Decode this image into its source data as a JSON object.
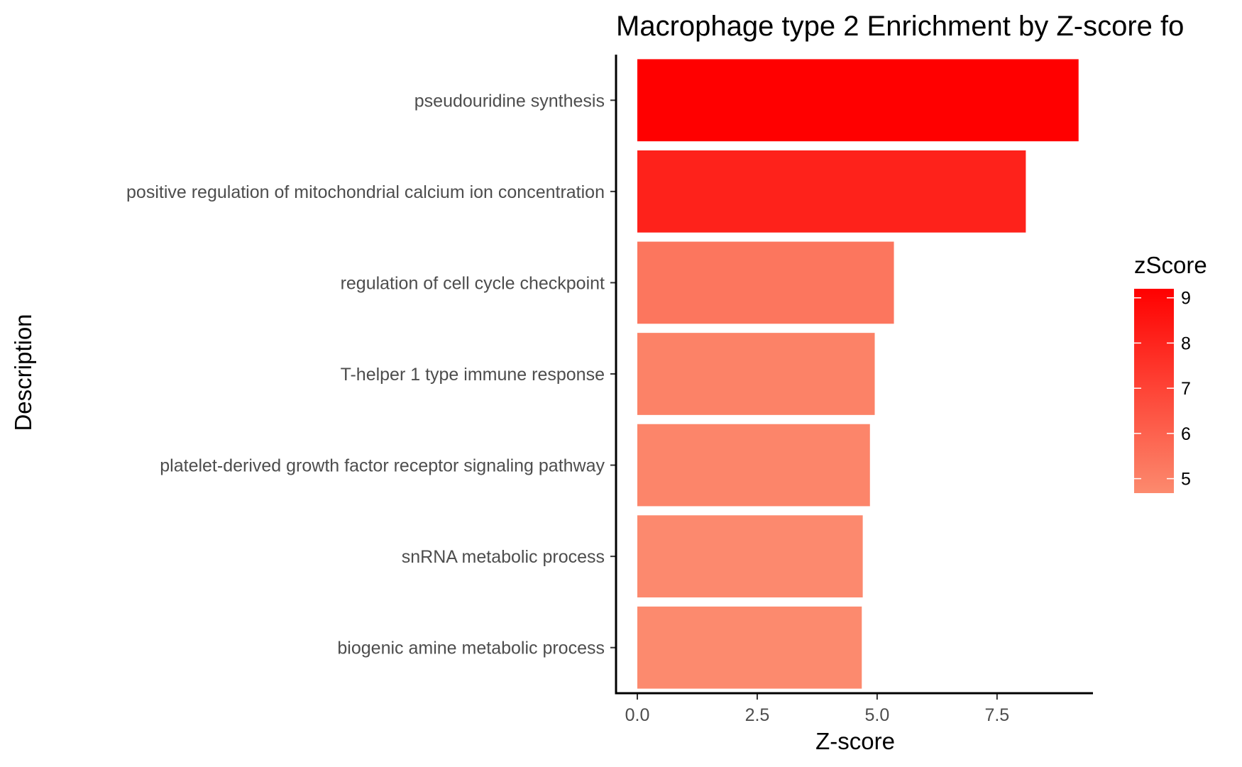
{
  "chart_data": {
    "type": "bar",
    "orientation": "horizontal",
    "title": "Macrophage type 2 Enrichment by Z-score fo",
    "xlabel": "Z-score",
    "ylabel": "Description",
    "categories": [
      "pseudouridine synthesis",
      "positive regulation of mitochondrial calcium ion concentration",
      "regulation of cell cycle checkpoint",
      "T-helper 1 type immune response",
      "platelet-derived growth factor receptor signaling pathway",
      "snRNA metabolic process",
      "biogenic amine metabolic process"
    ],
    "values": [
      9.2,
      8.1,
      5.35,
      4.95,
      4.85,
      4.7,
      4.68
    ],
    "xlim": [
      0,
      9.5
    ],
    "xticks": [
      "0.0",
      "2.5",
      "5.0",
      "7.5"
    ],
    "xtick_values": [
      0,
      2.5,
      5.0,
      7.5
    ],
    "grid": false,
    "legend": {
      "title": "zScore",
      "placement": "right",
      "range": [
        4.68,
        9.2
      ],
      "ticks": [
        "5",
        "6",
        "7",
        "8",
        "9"
      ],
      "tick_values": [
        5,
        6,
        7,
        8,
        9
      ],
      "low_color": "#fc8a6e",
      "high_color": "#ff0000"
    },
    "colors": {
      "axis": "#000000",
      "tick_text": "#4d4d4d"
    }
  }
}
